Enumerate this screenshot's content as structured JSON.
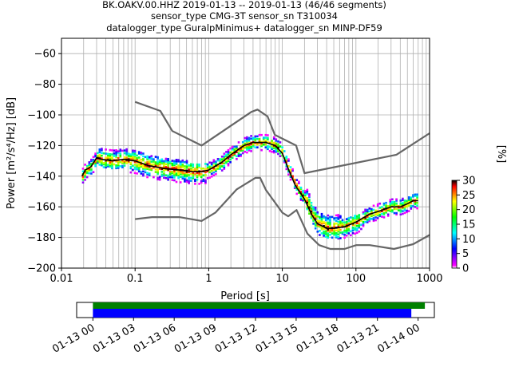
{
  "chart_data": {
    "type": "heatmap",
    "title_lines": [
      "BK.OAKV.00.HHZ   2019-01-13 -- 2019-01-13  (46/46 segments)",
      "sensor_type CMG-3T sensor_sn T310034",
      "datalogger_type GuralpMinimus+ datalogger_sn MINP-DF59"
    ],
    "xlabel": "Period [s]",
    "ylabel": "Power [m²/s⁴/Hz] [dB]",
    "xscale": "log",
    "xlim": [
      0.01,
      1000
    ],
    "ylim": [
      -200,
      -50
    ],
    "xticks": [
      {
        "v": 0.01,
        "label": "0.01"
      },
      {
        "v": 0.1,
        "label": "0.1"
      },
      {
        "v": 1,
        "label": "1"
      },
      {
        "v": 10,
        "label": "10"
      },
      {
        "v": 100,
        "label": "100"
      },
      {
        "v": 1000,
        "label": "1000"
      }
    ],
    "yticks": [
      {
        "v": -60,
        "label": "−60"
      },
      {
        "v": -80,
        "label": "−80"
      },
      {
        "v": -100,
        "label": "−100"
      },
      {
        "v": -120,
        "label": "−120"
      },
      {
        "v": -140,
        "label": "−140"
      },
      {
        "v": -160,
        "label": "−160"
      },
      {
        "v": -180,
        "label": "−180"
      },
      {
        "v": -200,
        "label": "−200"
      }
    ],
    "grid": true,
    "noise_models": {
      "high": {
        "x": [
          0.1,
          0.22,
          0.32,
          0.8,
          3.8,
          4.6,
          6.3,
          7.9,
          15.4,
          20,
          354.8,
          1000
        ],
        "y": [
          -91.5,
          -97.4,
          -110.5,
          -120,
          -98,
          -96.5,
          -101,
          -113,
          -120,
          -138,
          -126,
          -112
        ]
      },
      "low": {
        "x": [
          0.1,
          0.17,
          0.4,
          0.8,
          1.24,
          2.4,
          4.3,
          5,
          6,
          10,
          12,
          15.6,
          21.9,
          31.6,
          45,
          70,
          101,
          154,
          328,
          600,
          1000
        ],
        "y": [
          -168,
          -166.7,
          -166.7,
          -169.2,
          -163.7,
          -148.6,
          -141.1,
          -141.1,
          -149,
          -163.8,
          -166.2,
          -162.1,
          -177.5,
          -185,
          -187.5,
          -187.5,
          -185,
          -185,
          -187.5,
          -184.4,
          -178.4
        ]
      }
    },
    "median": {
      "x": [
        0.019,
        0.021,
        0.025,
        0.03,
        0.035,
        0.05,
        0.07,
        0.1,
        0.15,
        0.25,
        0.4,
        0.6,
        0.8,
        1.0,
        1.5,
        2.0,
        3.0,
        4.0,
        5.0,
        6.0,
        8.0,
        10,
        12,
        15,
        20,
        25,
        30,
        40,
        50,
        70,
        100,
        150,
        200,
        300,
        400,
        500,
        600,
        700
      ],
      "y": [
        -140,
        -136,
        -134,
        -128,
        -129,
        -130,
        -129,
        -130,
        -133,
        -135,
        -136,
        -137,
        -137,
        -136,
        -131,
        -126,
        -120,
        -118,
        -118,
        -118,
        -120,
        -125,
        -135,
        -146,
        -155,
        -165,
        -171,
        -174,
        -174,
        -173,
        -170,
        -165,
        -163,
        -160,
        -160,
        -158,
        -156,
        -156
      ]
    },
    "scatter_band_halfwidth_db": 5,
    "colorbar": {
      "label": "[%]",
      "min": 0,
      "max": 30,
      "ticks": [
        {
          "v": 0,
          "label": "0"
        },
        {
          "v": 5,
          "label": "5"
        },
        {
          "v": 10,
          "label": "10"
        },
        {
          "v": 15,
          "label": "15"
        },
        {
          "v": 20,
          "label": "20"
        },
        {
          "v": 25,
          "label": "25"
        },
        {
          "v": 30,
          "label": "30"
        }
      ],
      "colors": [
        "#ffffff",
        "#ff00ff",
        "#0000ff",
        "#00ffff",
        "#00ff00",
        "#ffff00",
        "#ff0000",
        "#000000"
      ]
    },
    "timeline": {
      "ticks": [
        "01-13 00",
        "01-13 03",
        "01-13 06",
        "01-13 09",
        "01-13 12",
        "01-13 15",
        "01-13 18",
        "01-13 21",
        "01-14 00"
      ],
      "hours_range": [
        -1.2,
        25.2
      ],
      "green_bar_hours": [
        0,
        24.5
      ],
      "blue_bar_hours": [
        0,
        23.5
      ],
      "green_color": "#008000",
      "blue_color": "#0000ff"
    }
  }
}
